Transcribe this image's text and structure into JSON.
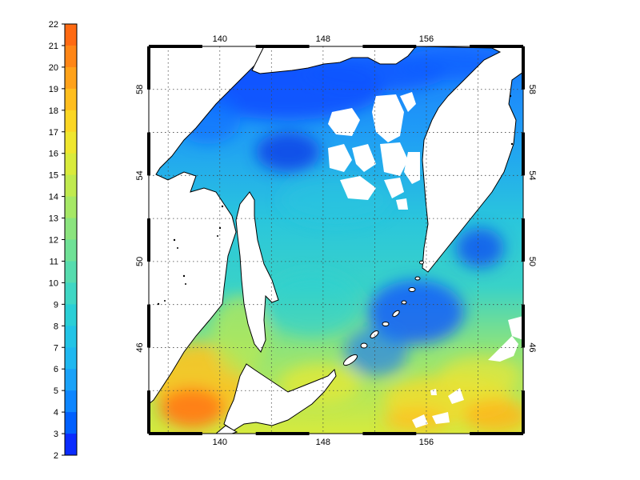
{
  "colorbar": {
    "ticks": [
      "2",
      "3",
      "4",
      "5",
      "6",
      "7",
      "8",
      "9",
      "10",
      "11",
      "12",
      "13",
      "14",
      "15",
      "16",
      "17",
      "18",
      "19",
      "20",
      "21",
      "22"
    ],
    "range": [
      2,
      22
    ],
    "colors": [
      "#0a2cff",
      "#0060ff",
      "#0d86ff",
      "#1aa2f8",
      "#1fb8f0",
      "#22c4e6",
      "#2acfd6",
      "#3fd7c4",
      "#56dcae",
      "#6fe196",
      "#8be47e",
      "#a6e866",
      "#c0ea4f",
      "#d9eb3c",
      "#efe62e",
      "#fbd624",
      "#ffbe1e",
      "#ffa21a",
      "#ff8616",
      "#ff6a12",
      "#ff4c10"
    ]
  },
  "map": {
    "x_ticks_top": [
      "140",
      "148",
      "156"
    ],
    "x_ticks_bottom": [
      "140",
      "148",
      "156"
    ],
    "y_ticks_left": [
      "58",
      "54",
      "50",
      "46"
    ],
    "y_ticks_right": [
      "58",
      "54",
      "50",
      "46"
    ],
    "lon_range": [
      134.5,
      163.5
    ],
    "lat_range": [
      42,
      60
    ],
    "grid": true,
    "land_color": "#ffffff",
    "coast_color": "#000000"
  }
}
